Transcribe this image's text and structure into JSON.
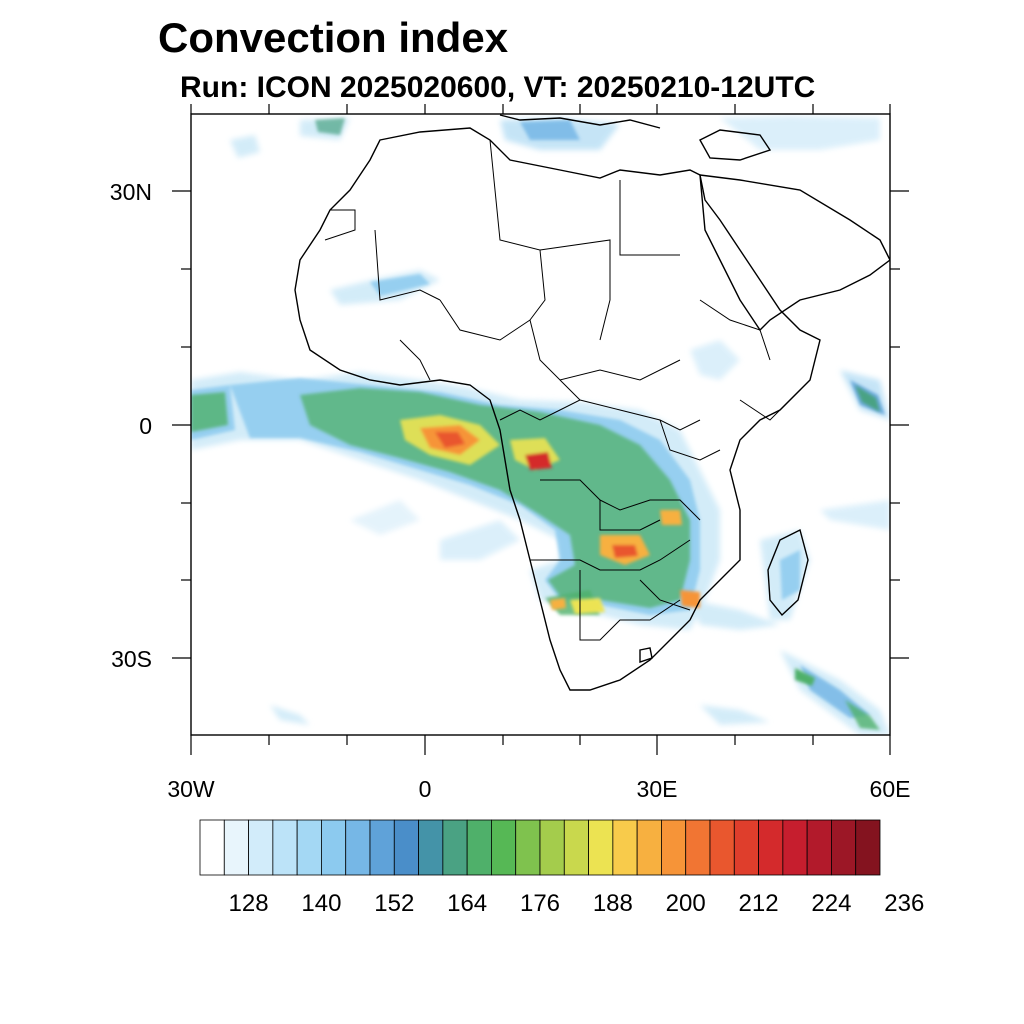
{
  "title": "Convection index",
  "subtitle": "Run: ICON 2025020600,  VT: 20250210-12UTC",
  "axes": {
    "lat_labels": [
      "30N",
      "0",
      "30S"
    ],
    "lon_labels": [
      "30W",
      "0",
      "30E",
      "60E"
    ]
  },
  "colorbar": {
    "labels": [
      "128",
      "140",
      "152",
      "164",
      "176",
      "188",
      "200",
      "212",
      "224",
      "236"
    ],
    "colors": [
      "#ffffff",
      "#e8f5fc",
      "#d2ecfa",
      "#bce3f8",
      "#a4d8f4",
      "#8ccaef",
      "#76b7e6",
      "#5fa2d9",
      "#4a8ec9",
      "#4493a8",
      "#4aa283",
      "#4fb06a",
      "#56b855",
      "#7fc24e",
      "#a4cc4c",
      "#c9d84d",
      "#ece352",
      "#f8cb4b",
      "#f7b040",
      "#f69438",
      "#f17533",
      "#e9572e",
      "#df3e2c",
      "#d42a2c",
      "#c61e2e",
      "#b21a2b",
      "#9c1726",
      "#84131f"
    ]
  },
  "map": {
    "lon_range": [
      -30,
      60
    ],
    "lat_range": [
      -40,
      40
    ],
    "frame_color": "#000000",
    "land_outline_color": "#000000"
  }
}
